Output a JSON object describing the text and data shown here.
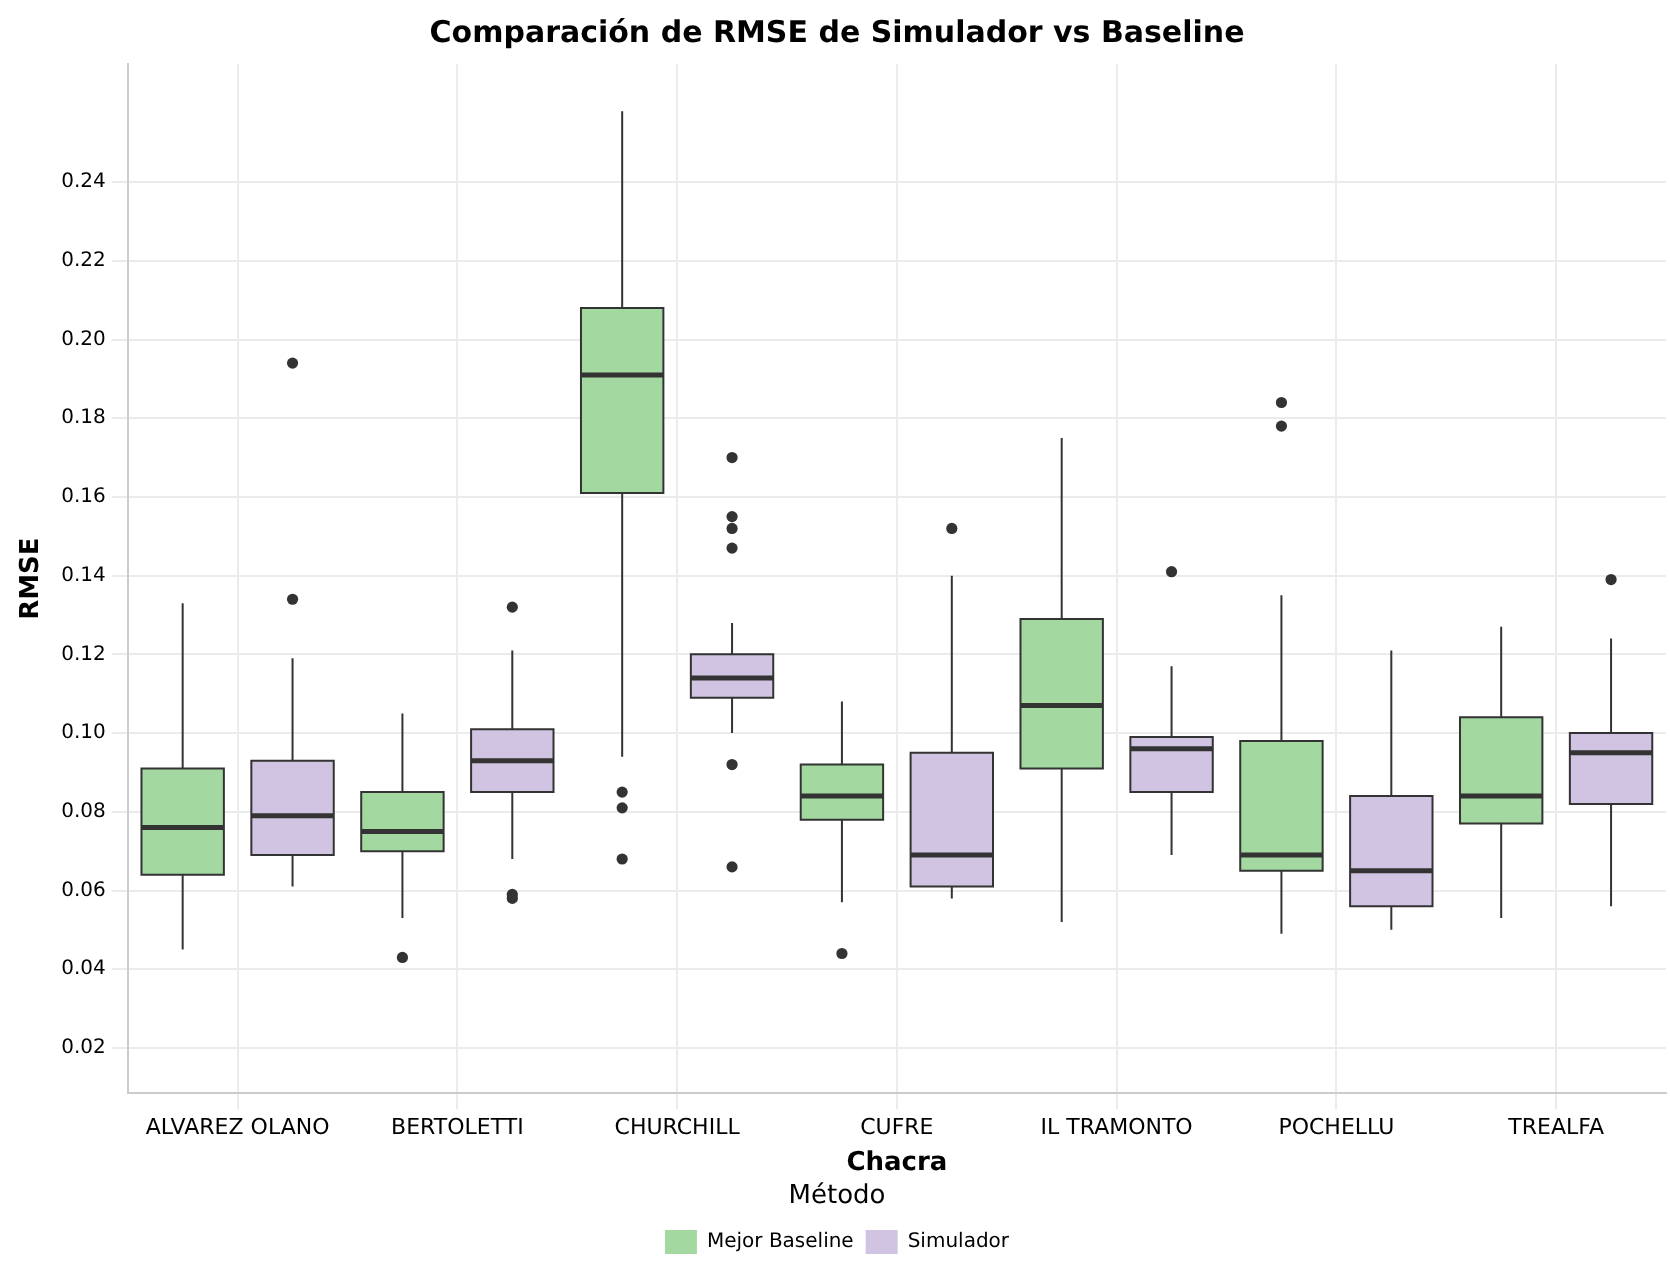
{
  "chart_data": {
    "type": "box",
    "title": "Comparación de RMSE de Simulador vs Baseline",
    "xlabel": "Chacra",
    "ylabel": "RMSE",
    "legend_title": "Método",
    "legend": "bottom",
    "grid": true,
    "categories": [
      "ALVAREZ OLANO",
      "BERTOLETTI",
      "CHURCHILL",
      "CUFRE",
      "IL TRAMONTO",
      "POCHELLU",
      "TREALFA"
    ],
    "ylim": [
      0.0085,
      0.27
    ],
    "yticks": [
      {
        "value": 0.02,
        "label": "0.02"
      },
      {
        "value": 0.04,
        "label": "0.04"
      },
      {
        "value": 0.06,
        "label": "0.06"
      },
      {
        "value": 0.08,
        "label": "0.08"
      },
      {
        "value": 0.1,
        "label": "0.10"
      },
      {
        "value": 0.12,
        "label": "0.12"
      },
      {
        "value": 0.14,
        "label": "0.14"
      },
      {
        "value": 0.16,
        "label": "0.16"
      },
      {
        "value": 0.18,
        "label": "0.18"
      },
      {
        "value": 0.2,
        "label": "0.20"
      },
      {
        "value": 0.22,
        "label": "0.22"
      },
      {
        "value": 0.24,
        "label": "0.24"
      }
    ],
    "series": [
      {
        "name": "Mejor Baseline",
        "color": "#a3d9a1",
        "boxes": [
          {
            "low": 0.045,
            "q1": 0.064,
            "median": 0.076,
            "q3": 0.091,
            "high": 0.133
          },
          {
            "low": 0.053,
            "q1": 0.07,
            "median": 0.075,
            "q3": 0.085,
            "high": 0.105,
            "outliers": [
              0.043
            ]
          },
          {
            "low": 0.094,
            "q1": 0.161,
            "median": 0.191,
            "q3": 0.208,
            "high": 0.258,
            "outliers": [
              0.085,
              0.081,
              0.068
            ]
          },
          {
            "low": 0.057,
            "q1": 0.078,
            "median": 0.084,
            "q3": 0.092,
            "high": 0.108,
            "outliers": [
              0.044
            ]
          },
          {
            "low": 0.052,
            "q1": 0.091,
            "median": 0.107,
            "q3": 0.129,
            "high": 0.175
          },
          {
            "low": 0.049,
            "q1": 0.065,
            "median": 0.069,
            "q3": 0.098,
            "high": 0.135,
            "outliers": [
              0.184,
              0.178
            ]
          },
          {
            "low": 0.053,
            "q1": 0.077,
            "median": 0.084,
            "q3": 0.104,
            "high": 0.127
          }
        ]
      },
      {
        "name": "Simulador",
        "color": "#d0c4e2",
        "boxes": [
          {
            "low": 0.061,
            "q1": 0.069,
            "median": 0.079,
            "q3": 0.093,
            "high": 0.119,
            "outliers": [
              0.194,
              0.134
            ]
          },
          {
            "low": 0.068,
            "q1": 0.085,
            "median": 0.093,
            "q3": 0.101,
            "high": 0.121,
            "outliers": [
              0.132,
              0.059,
              0.058
            ]
          },
          {
            "low": 0.1,
            "q1": 0.109,
            "median": 0.114,
            "q3": 0.12,
            "high": 0.128,
            "outliers": [
              0.17,
              0.155,
              0.152,
              0.147,
              0.092,
              0.066
            ]
          },
          {
            "low": 0.058,
            "q1": 0.061,
            "median": 0.069,
            "q3": 0.095,
            "high": 0.14,
            "outliers": [
              0.152
            ]
          },
          {
            "low": 0.069,
            "q1": 0.085,
            "median": 0.096,
            "q3": 0.099,
            "high": 0.117,
            "outliers": [
              0.141
            ]
          },
          {
            "low": 0.05,
            "q1": 0.056,
            "median": 0.065,
            "q3": 0.084,
            "high": 0.121
          },
          {
            "low": 0.056,
            "q1": 0.082,
            "median": 0.095,
            "q3": 0.1,
            "high": 0.124,
            "outliers": [
              0.139
            ]
          }
        ]
      }
    ]
  }
}
